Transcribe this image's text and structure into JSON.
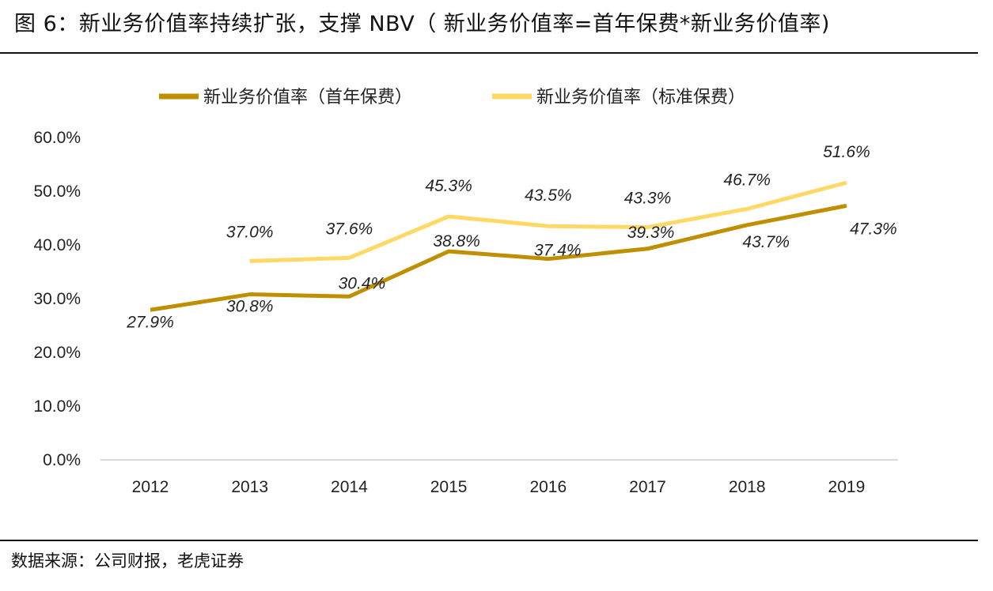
{
  "title": "图 6：新业务价值率持续扩张，支撑 NBV（ 新业务价值率=首年保费*新业务价值率)",
  "source": "数据来源：公司财报，老虎证券",
  "chart_data": {
    "type": "line",
    "categories": [
      "2012",
      "2013",
      "2014",
      "2015",
      "2016",
      "2017",
      "2018",
      "2019"
    ],
    "series": [
      {
        "name": "新业务价值率（首年保费）",
        "color": "#BF8F00",
        "values": [
          27.9,
          30.8,
          30.4,
          38.8,
          37.4,
          39.3,
          43.7,
          47.3
        ],
        "labels": [
          "27.9%",
          "30.8%",
          "30.4%",
          "38.8%",
          "37.4%",
          "39.3%",
          "43.7%",
          "47.3%"
        ]
      },
      {
        "name": "新业务价值率（标准保费）",
        "color": "#FFD966",
        "values": [
          null,
          37.0,
          37.6,
          45.3,
          43.5,
          43.3,
          46.7,
          51.6
        ],
        "labels": [
          null,
          "37.0%",
          "37.6%",
          "45.3%",
          "43.5%",
          "43.3%",
          "46.7%",
          "51.6%"
        ]
      }
    ],
    "y_ticks": [
      "0.0%",
      "10.0%",
      "20.0%",
      "30.0%",
      "40.0%",
      "50.0%",
      "60.0%"
    ],
    "ylim": [
      0,
      60
    ],
    "legend_position": "top-center",
    "grid": false
  }
}
